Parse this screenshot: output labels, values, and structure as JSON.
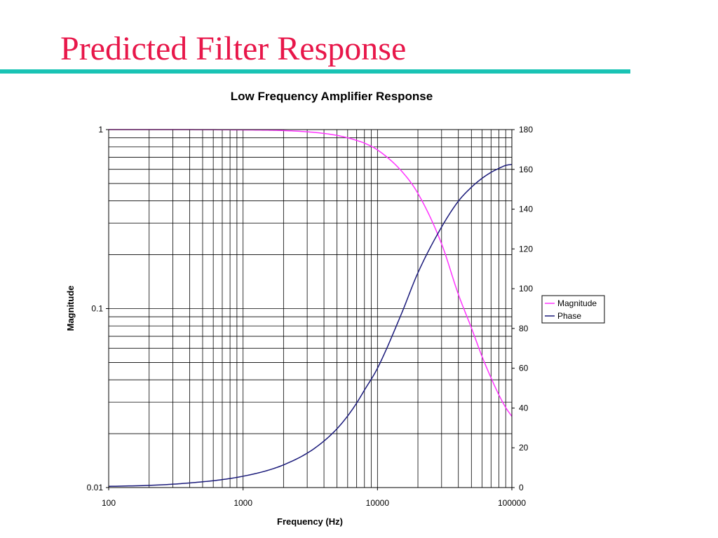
{
  "slide": {
    "title": "Predicted Filter Response",
    "title_color": "#e8174a",
    "rule_color": "#19c3b4"
  },
  "chart_data": {
    "type": "line",
    "title": "Low Frequency Amplifier Response",
    "xlabel": "Frequency (Hz)",
    "ylabel": "Magnitude",
    "y2label": "",
    "x_scale": "log",
    "y_scale": "log",
    "xlim": [
      100,
      100000
    ],
    "ylim": [
      0.01,
      1
    ],
    "y2lim": [
      0,
      180
    ],
    "x_tick_labels": [
      "100",
      "1000",
      "10000",
      "100000"
    ],
    "y_tick_labels": [
      "0.01",
      "0.1",
      "1"
    ],
    "y2_tick_labels": [
      "0",
      "20",
      "40",
      "60",
      "80",
      "100",
      "120",
      "140",
      "160",
      "180"
    ],
    "grid": true,
    "legend_position": "right",
    "x": [
      100,
      200,
      300,
      500,
      700,
      1000,
      1500,
      2000,
      3000,
      4000,
      5000,
      6000,
      7000,
      8000,
      10000,
      15000,
      20000,
      30000,
      40000,
      50000,
      60000,
      70000,
      80000,
      90000,
      100000
    ],
    "series": [
      {
        "name": "Magnitude",
        "axis": "left",
        "color": "#ff33ff",
        "values": [
          1.0,
          1.0,
          1.0,
          0.999,
          0.998,
          0.996,
          0.993,
          0.988,
          0.972,
          0.952,
          0.928,
          0.9,
          0.87,
          0.84,
          0.77,
          0.59,
          0.44,
          0.23,
          0.12,
          0.078,
          0.054,
          0.041,
          0.033,
          0.028,
          0.025
        ]
      },
      {
        "name": "Phase",
        "axis": "right",
        "color": "#1a1a7a",
        "values": [
          0.6,
          1.1,
          1.7,
          2.9,
          4.0,
          5.7,
          8.5,
          11.4,
          17.3,
          23.4,
          29.6,
          36.0,
          42.5,
          49.0,
          60.0,
          87.0,
          108.0,
          131.0,
          144.0,
          151.0,
          155.5,
          158.5,
          160.5,
          162.0,
          162.5
        ]
      }
    ]
  }
}
